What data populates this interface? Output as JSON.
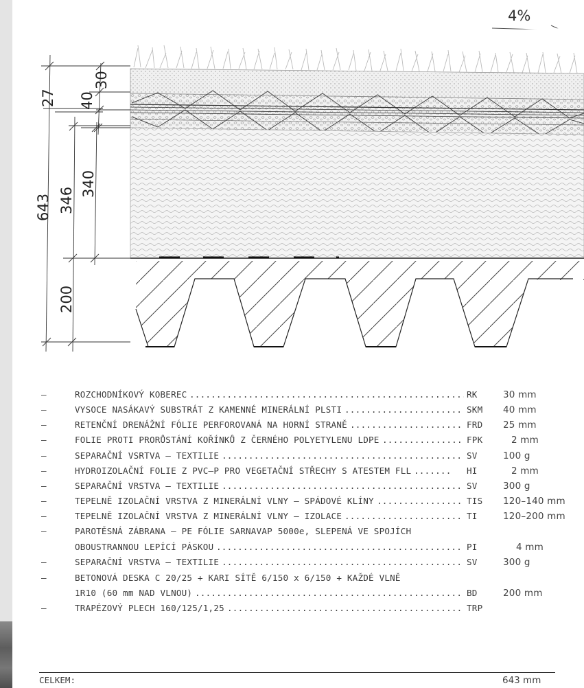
{
  "slope_label": "4%",
  "dimensions": {
    "total": "643",
    "upper_total": "346",
    "insulation": "340",
    "deck": "200",
    "substrate": "40",
    "mat": "30",
    "membranes": "27"
  },
  "layers": [
    {
      "desc": "ROZCHODNÍKOVÝ KOBEREC",
      "dots": "...................................................................................",
      "code": "RK",
      "value": "30 mm"
    },
    {
      "desc": "VYSOCE NASÁKAVÝ SUBSTRÁT Z KAMENNÉ MINERÁLNÍ PLSTI",
      "dots": "................................",
      "code": "SKM",
      "value": "40 mm"
    },
    {
      "desc": "RETENČNÍ DRENÁŽNÍ FÓLIE PERFOROVANÁ NA HORNÍ STRANĚ",
      "dots": "...............................",
      "code": "FRD",
      "value": "25 mm"
    },
    {
      "desc": "FOLIE PROTI PRORŮSTÁNÍ KOŘÍNKŮ Z ČERNÉHO POLYETYLENU LDPE",
      "dots": "...................",
      "code": "FPK",
      "value": "2 mm"
    },
    {
      "desc": "SEPARAČNÍ VSRTVA – TEXTILIE",
      "dots": "............................................................................",
      "code": "SV",
      "value": "100 g"
    },
    {
      "desc": "HYDROIZOLAČNÍ FOLIE Z PVC–P PRO VEGETAČNÍ STŘECHY S ATESTEM FLL",
      "dots": ".......",
      "code": "HI",
      "value": "2 mm"
    },
    {
      "desc": "SEPARAČNÍ VRSTVA – TEXTILIE",
      "dots": "............................................................................",
      "code": "SV",
      "value": "300 g"
    },
    {
      "desc": "TEPELNĚ IZOLAČNÍ VRSTVA Z MINERÁLNÍ VLNY  – SPÁDOVÉ KLÍNY",
      "dots": ".........................",
      "code": "TIS",
      "value": "120–140 mm"
    },
    {
      "desc": "TEPELNĚ IZOLAČNÍ VRSTVA Z MINERÁLNÍ VLNY  – IZOLACE",
      "dots": "................................",
      "code": "TI",
      "value": "120–200 mm"
    },
    {
      "desc": "PAROTĚSNÁ ZÁBRANA – PE FÓLIE SARNAVAP 5000e, SLEPENÁ VE SPOJÍCH",
      "dots": "",
      "code": "",
      "value": ""
    },
    {
      "desc": "OBOUSTRANNOU LEPÍCÍ PÁSKOU",
      "dots": "............................................................................",
      "code": "PI",
      "value": "4 mm"
    },
    {
      "desc": "SEPARAČNÍ VRSTVA – TEXTILIE",
      "dots": "............................................................................",
      "code": "SV",
      "value": "300 g"
    },
    {
      "desc": "BETONOVÁ DESKA C 20/25 + KARI SÍTĚ 6/150 x 6/150 + KAŽDÉ VLNĚ",
      "dots": "",
      "code": "",
      "value": ""
    },
    {
      "desc": "1R10  (60 mm NAD VLNOU)",
      "dots": ".................................................................................",
      "code": "BD",
      "value": "200 mm"
    },
    {
      "desc": "TRAPÉZOVÝ PLECH 160/125/1,25",
      "dots": "............................................................................",
      "code": "TRP",
      "value": ""
    }
  ],
  "total": {
    "label": "CELKEM:",
    "value": "643 mm"
  }
}
